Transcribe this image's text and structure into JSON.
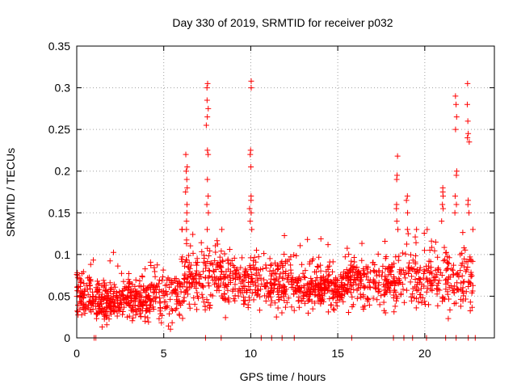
{
  "chart_data": {
    "type": "scatter",
    "title": "Day 330 of 2019, SRMTID for receiver p032",
    "xlabel": "GPS time / hours",
    "ylabel": "SRMTID / TECUs",
    "xlim": [
      0,
      24
    ],
    "ylim": [
      0,
      0.35
    ],
    "xticks": [
      0,
      5,
      10,
      15,
      20
    ],
    "xtick_labels": [
      "0",
      "5",
      "10",
      "15",
      "20"
    ],
    "yticks": [
      0,
      0.05,
      0.1,
      0.15,
      0.2,
      0.25,
      0.3,
      0.35
    ],
    "ytick_labels": [
      "0",
      "0.05",
      "0.1",
      "0.15",
      "0.2",
      "0.25",
      "0.3",
      "0.35"
    ],
    "grid": true,
    "marker": "+",
    "color": "#ff0000",
    "seed": 330,
    "segments": [
      {
        "x0": 0.0,
        "x1": 4.5,
        "base": 0.045,
        "spread": 0.02,
        "density": 90
      },
      {
        "x0": 4.5,
        "x1": 6.0,
        "base": 0.05,
        "spread": 0.025,
        "density": 60
      },
      {
        "x0": 6.0,
        "x1": 9.0,
        "base": 0.07,
        "spread": 0.03,
        "density": 70
      },
      {
        "x0": 9.0,
        "x1": 12.5,
        "base": 0.065,
        "spread": 0.025,
        "density": 70
      },
      {
        "x0": 12.5,
        "x1": 15.5,
        "base": 0.06,
        "spread": 0.02,
        "density": 85
      },
      {
        "x0": 15.5,
        "x1": 18.5,
        "base": 0.065,
        "spread": 0.025,
        "density": 70
      },
      {
        "x0": 18.5,
        "x1": 22.8,
        "base": 0.07,
        "spread": 0.03,
        "density": 55
      }
    ],
    "spikes": [
      {
        "x": 6.3,
        "values": [
          0.22,
          0.205,
          0.2,
          0.19,
          0.18,
          0.175,
          0.16,
          0.15,
          0.14,
          0.13
        ]
      },
      {
        "x": 7.5,
        "values": [
          0.305,
          0.3,
          0.285,
          0.275,
          0.265,
          0.255,
          0.225,
          0.22,
          0.19,
          0.17,
          0.16,
          0.15
        ]
      },
      {
        "x": 10.0,
        "values": [
          0.308,
          0.3,
          0.225,
          0.22,
          0.205,
          0.17,
          0.165,
          0.155,
          0.15,
          0.14,
          0.13
        ]
      },
      {
        "x": 18.4,
        "values": [
          0.218,
          0.195,
          0.19,
          0.16,
          0.155,
          0.14,
          0.13
        ]
      },
      {
        "x": 19.0,
        "values": [
          0.17,
          0.165,
          0.15,
          0.13,
          0.125
        ]
      },
      {
        "x": 21.0,
        "values": [
          0.18,
          0.175,
          0.17,
          0.16,
          0.155,
          0.14
        ]
      },
      {
        "x": 21.8,
        "values": [
          0.29,
          0.28,
          0.265,
          0.25,
          0.2,
          0.195,
          0.17,
          0.16,
          0.15
        ]
      },
      {
        "x": 22.5,
        "values": [
          0.305,
          0.28,
          0.26,
          0.245,
          0.24,
          0.235,
          0.165,
          0.16,
          0.15
        ]
      }
    ],
    "zero_points": [
      1.0,
      1.1,
      7.4,
      8.3,
      10.6,
      11.2,
      11.8,
      12.5,
      15.8,
      18.2,
      18.8,
      19.3,
      20.1,
      21.2,
      21.8,
      22.5,
      22.9
    ]
  }
}
